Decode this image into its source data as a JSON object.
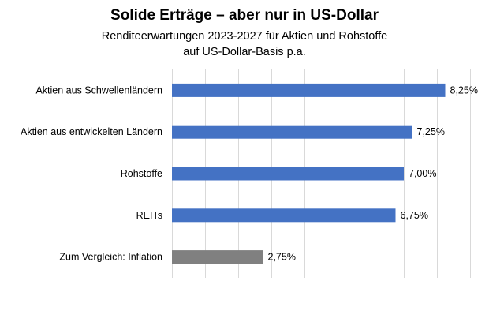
{
  "chart_data": {
    "type": "bar",
    "orientation": "horizontal",
    "title": "Solide Erträge – aber nur in US-Dollar",
    "subtitle_lines": [
      "Renditeerwartungen 2023-2027 für Aktien und Rohstoffe",
      "auf US-Dollar-Basis p.a."
    ],
    "categories": [
      "Aktien aus Schwellenländern",
      "Aktien aus entwickelten Ländern",
      "Rohstoffe",
      "REITs",
      "Zum Vergleich: Inflation"
    ],
    "values": [
      8.25,
      7.25,
      7.0,
      6.75,
      2.75
    ],
    "value_labels": [
      "8,25%",
      "7,25%",
      "7,00%",
      "6,75%",
      "2,75%"
    ],
    "bar_colors": [
      "#4472C4",
      "#4472C4",
      "#4472C4",
      "#4472C4",
      "#808080"
    ],
    "xlim": [
      0,
      9
    ],
    "grid": true,
    "xlabel": "",
    "ylabel": ""
  }
}
